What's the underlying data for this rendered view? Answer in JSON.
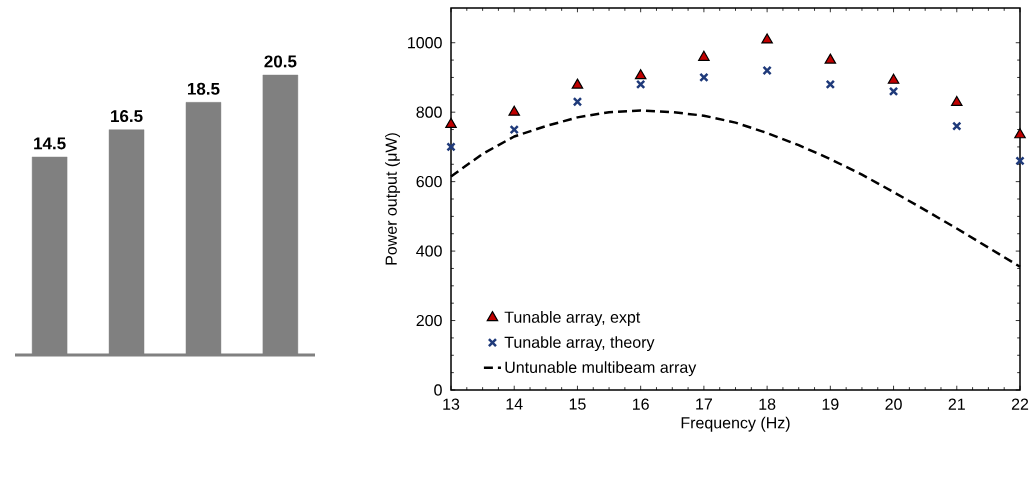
{
  "chart_data": [
    {
      "type": "bar",
      "categories": [
        null,
        null,
        null,
        null
      ],
      "values": [
        14.5,
        16.5,
        18.5,
        20.5
      ],
      "color": "#808080",
      "data_labels": true
    },
    {
      "type": "scatter",
      "xlabel": "Frequency (Hz)",
      "ylabel": "Power output (μW)",
      "xlim": [
        13,
        22
      ],
      "ylim": [
        0,
        1100
      ],
      "xticks": [
        13,
        14,
        15,
        16,
        17,
        18,
        19,
        20,
        21,
        22
      ],
      "yticks": [
        0,
        200,
        400,
        600,
        800,
        1000
      ],
      "legend": "bottom left",
      "series": [
        {
          "name": "Tunable array, expt",
          "type": "scatter",
          "marker": "triangle",
          "color": "#c00000",
          "x": [
            13,
            14,
            15,
            16,
            17,
            18,
            19,
            20,
            21,
            22
          ],
          "values": [
            765,
            800,
            878,
            905,
            958,
            1008,
            950,
            892,
            828,
            735
          ]
        },
        {
          "name": "Tunable array, theory",
          "type": "scatter",
          "marker": "cross",
          "color": "#1f3a7a",
          "x": [
            13,
            14,
            15,
            16,
            17,
            18,
            19,
            20,
            21,
            22
          ],
          "values": [
            700,
            750,
            830,
            880,
            900,
            920,
            880,
            860,
            760,
            660
          ]
        },
        {
          "name": "Untunable multibeam array",
          "type": "line",
          "marker": "none",
          "line_style": "dashed",
          "color": "#000000",
          "x": [
            13,
            13.5,
            14,
            14.5,
            15,
            15.5,
            16,
            16.5,
            17,
            17.5,
            18,
            18.5,
            19,
            19.5,
            20,
            20.5,
            21,
            21.5,
            22
          ],
          "values": [
            615,
            680,
            730,
            760,
            785,
            800,
            805,
            800,
            790,
            770,
            740,
            705,
            665,
            620,
            570,
            518,
            465,
            410,
            355
          ]
        }
      ]
    }
  ]
}
